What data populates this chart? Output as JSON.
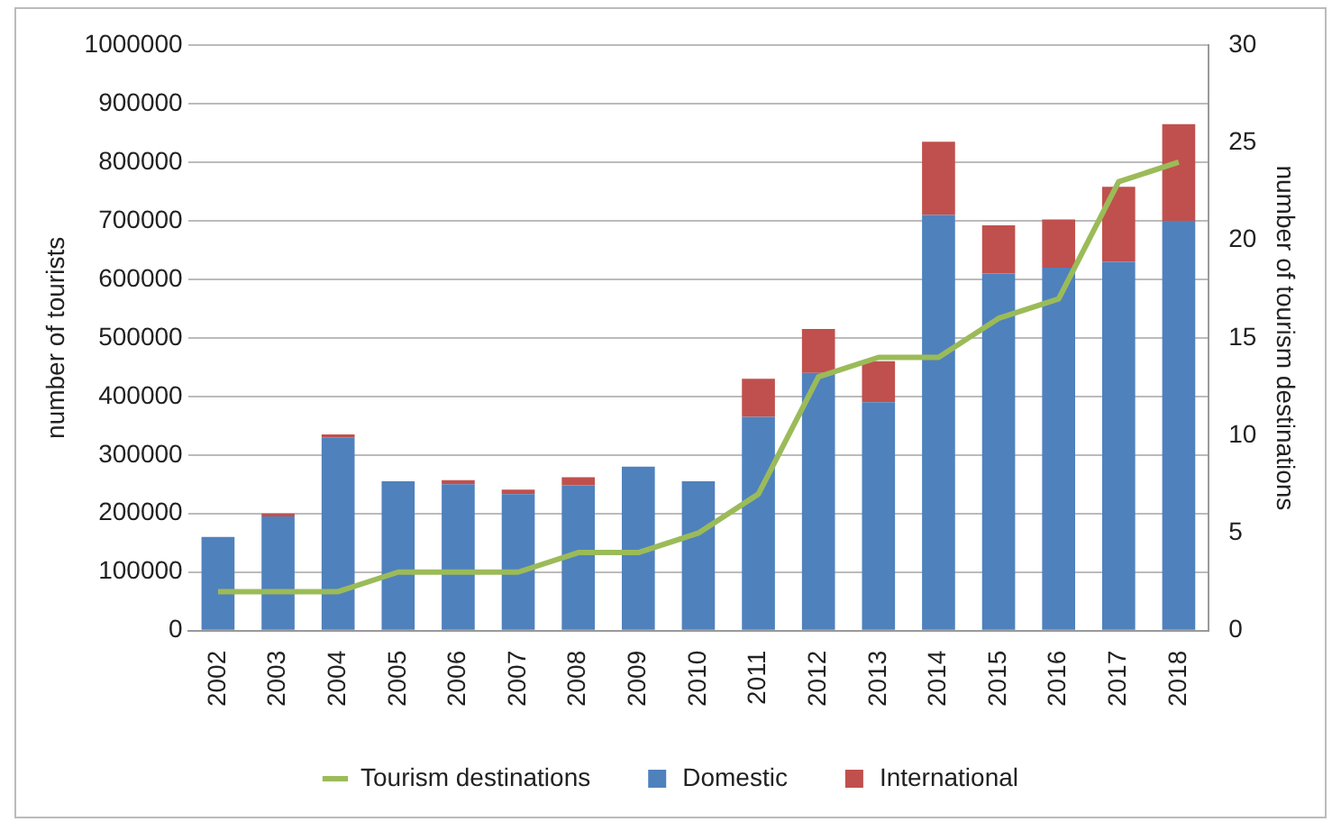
{
  "chart_data": {
    "type": "bar",
    "stacked": true,
    "categories": [
      "2002",
      "2003",
      "2004",
      "2005",
      "2006",
      "2007",
      "2008",
      "2009",
      "2010",
      "2011",
      "2012",
      "2013",
      "2014",
      "2015",
      "2016",
      "2017",
      "2018"
    ],
    "ylabel": "number of tourists",
    "y2label": "number of tourism destinations",
    "ylim": [
      0,
      1000000
    ],
    "yticks": [
      0,
      100000,
      200000,
      300000,
      400000,
      500000,
      600000,
      700000,
      800000,
      900000,
      1000000
    ],
    "y2lim": [
      0,
      30
    ],
    "y2ticks": [
      0,
      5,
      10,
      15,
      20,
      25,
      30
    ],
    "grid": "y",
    "legend": "bottom",
    "series": [
      {
        "name": "Domestic",
        "color": "#4f81bd",
        "values": [
          160000,
          195000,
          330000,
          255000,
          250000,
          233000,
          248000,
          280000,
          255000,
          365000,
          440000,
          390000,
          710000,
          610000,
          620000,
          630000,
          700000
        ]
      },
      {
        "name": "International",
        "color": "#c0504d",
        "values": [
          0,
          5000,
          5000,
          0,
          7000,
          8000,
          14000,
          0,
          0,
          65000,
          75000,
          70000,
          125000,
          82000,
          82000,
          128000,
          165000
        ]
      },
      {
        "name": "Tourism destinations",
        "type": "line",
        "axis": "y2",
        "color": "#9bbb59",
        "values": [
          2,
          2,
          2,
          3,
          3,
          3,
          4,
          4,
          5,
          7,
          13,
          14,
          14,
          16,
          17,
          23,
          24
        ]
      }
    ]
  }
}
